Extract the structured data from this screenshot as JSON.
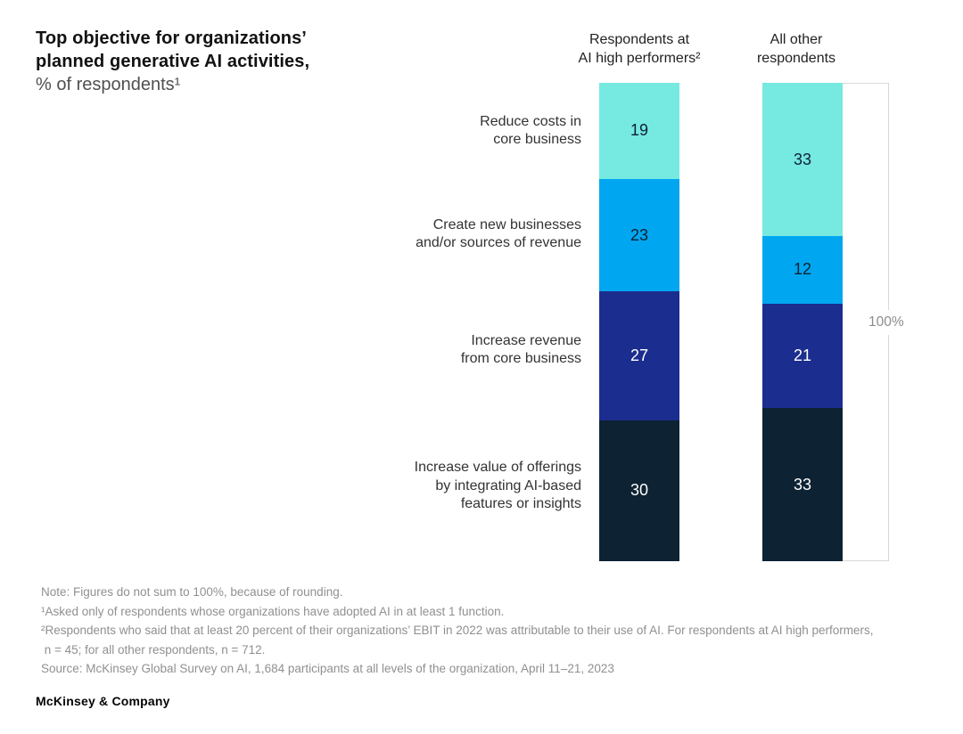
{
  "title": {
    "bold_lines": [
      "Top objective for organizations’",
      "planned generative AI activities,"
    ],
    "subtitle": "% of respondents¹"
  },
  "columns": [
    {
      "header_lines": [
        "Respondents at",
        "AI high performers²"
      ]
    },
    {
      "header_lines": [
        "All other",
        "respondents"
      ]
    }
  ],
  "chart_data": {
    "type": "bar",
    "stacked": true,
    "orientation": "vertical-100pct",
    "title": "Top objective for organizations’ planned generative AI activities",
    "ylabel": "% of respondents",
    "scale_max": 100,
    "scale_label": "100%",
    "categories": [
      "Reduce costs in core business",
      "Create new businesses and/or sources of revenue",
      "Increase revenue from core business",
      "Increase value of offerings by integrating AI-based features or insights"
    ],
    "category_lines": [
      [
        "Reduce costs in",
        "core business"
      ],
      [
        "Create new businesses",
        "and/or sources of revenue"
      ],
      [
        "Increase revenue",
        "from core business"
      ],
      [
        "Increase value of offerings",
        "by integrating AI-based",
        "features or insights"
      ]
    ],
    "series": [
      {
        "name": "Respondents at AI high performers²",
        "values": [
          19,
          23,
          27,
          30
        ]
      },
      {
        "name": "All other respondents",
        "values": [
          33,
          12,
          21,
          33
        ]
      }
    ],
    "segment_colors": [
      "#76E9E1",
      "#00A6F0",
      "#1B2D8E",
      "#0D2233"
    ],
    "value_label_colors": [
      "#0D2233",
      "#0D2233",
      "#FFFFFF",
      "#FFFFFF"
    ]
  },
  "footnotes": {
    "lines": [
      "Note: Figures do not sum to 100%, because of rounding.",
      "¹Asked only of respondents whose organizations have adopted AI in at least 1 function.",
      "²Respondents who said that at least 20 percent of their organizations’ EBIT in 2022 was attributable to their use of AI. For respondents at AI high performers,",
      " n = 45; for all other respondents, n = 712.",
      "Source: McKinsey Global Survey on AI, 1,684 participants at all levels of the organization, April 11–21, 2023"
    ]
  },
  "footer": {
    "brand": "McKinsey & Company"
  }
}
